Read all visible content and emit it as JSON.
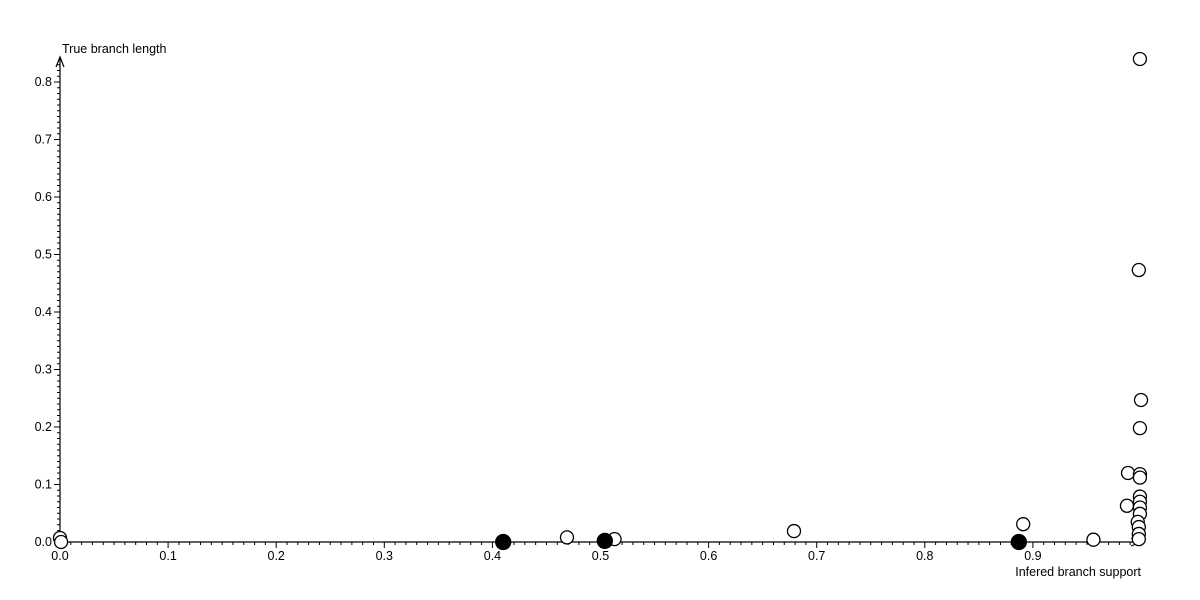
{
  "page": {
    "background": "#ffffff"
  },
  "colors": {
    "axis": "#000000",
    "text": "#000000",
    "marker_stroke": "#000000",
    "marker_open_fill": "#ffffff",
    "marker_filled_fill": "#000000"
  },
  "chart_data": {
    "type": "scatter",
    "title": "",
    "xlabel": "Infered branch support",
    "ylabel": "True branch length",
    "xlim": [
      0.0,
      1.02
    ],
    "ylim": [
      0.0,
      0.85
    ],
    "x_tick_labels": [
      "0.0",
      "0.1",
      "0.2",
      "0.3",
      "0.4",
      "0.5",
      "0.6",
      "0.7",
      "0.8",
      "0.9"
    ],
    "y_tick_labels": [
      "0.0",
      "0.1",
      "0.2",
      "0.3",
      "0.4",
      "0.5",
      "0.6",
      "0.7",
      "0.8"
    ],
    "major_tick_step": 0.1,
    "minor_tick_step": 0.01,
    "grid": false,
    "legend_position": "none",
    "series": [
      {
        "name": "open-circles",
        "marker": "open-circle",
        "points": [
          [
            0.0,
            0.007
          ],
          [
            0.001,
            0.0
          ],
          [
            0.469,
            0.008
          ],
          [
            0.513,
            0.005
          ],
          [
            0.679,
            0.019
          ],
          [
            0.891,
            0.031
          ],
          [
            0.956,
            0.004
          ],
          [
            0.999,
            0.84
          ],
          [
            0.998,
            0.473
          ],
          [
            1.0,
            0.247
          ],
          [
            0.999,
            0.198
          ],
          [
            0.988,
            0.12
          ],
          [
            0.999,
            0.118
          ],
          [
            0.999,
            0.112
          ],
          [
            0.999,
            0.079
          ],
          [
            0.999,
            0.07
          ],
          [
            0.987,
            0.063
          ],
          [
            0.999,
            0.06
          ],
          [
            0.999,
            0.049
          ],
          [
            0.997,
            0.035
          ],
          [
            0.998,
            0.026
          ],
          [
            0.998,
            0.014
          ],
          [
            0.998,
            0.005
          ]
        ]
      },
      {
        "name": "filled-circles",
        "marker": "filled-circle",
        "points": [
          [
            0.41,
            0.0
          ],
          [
            0.504,
            0.002
          ],
          [
            0.887,
            0.0
          ]
        ]
      }
    ]
  }
}
